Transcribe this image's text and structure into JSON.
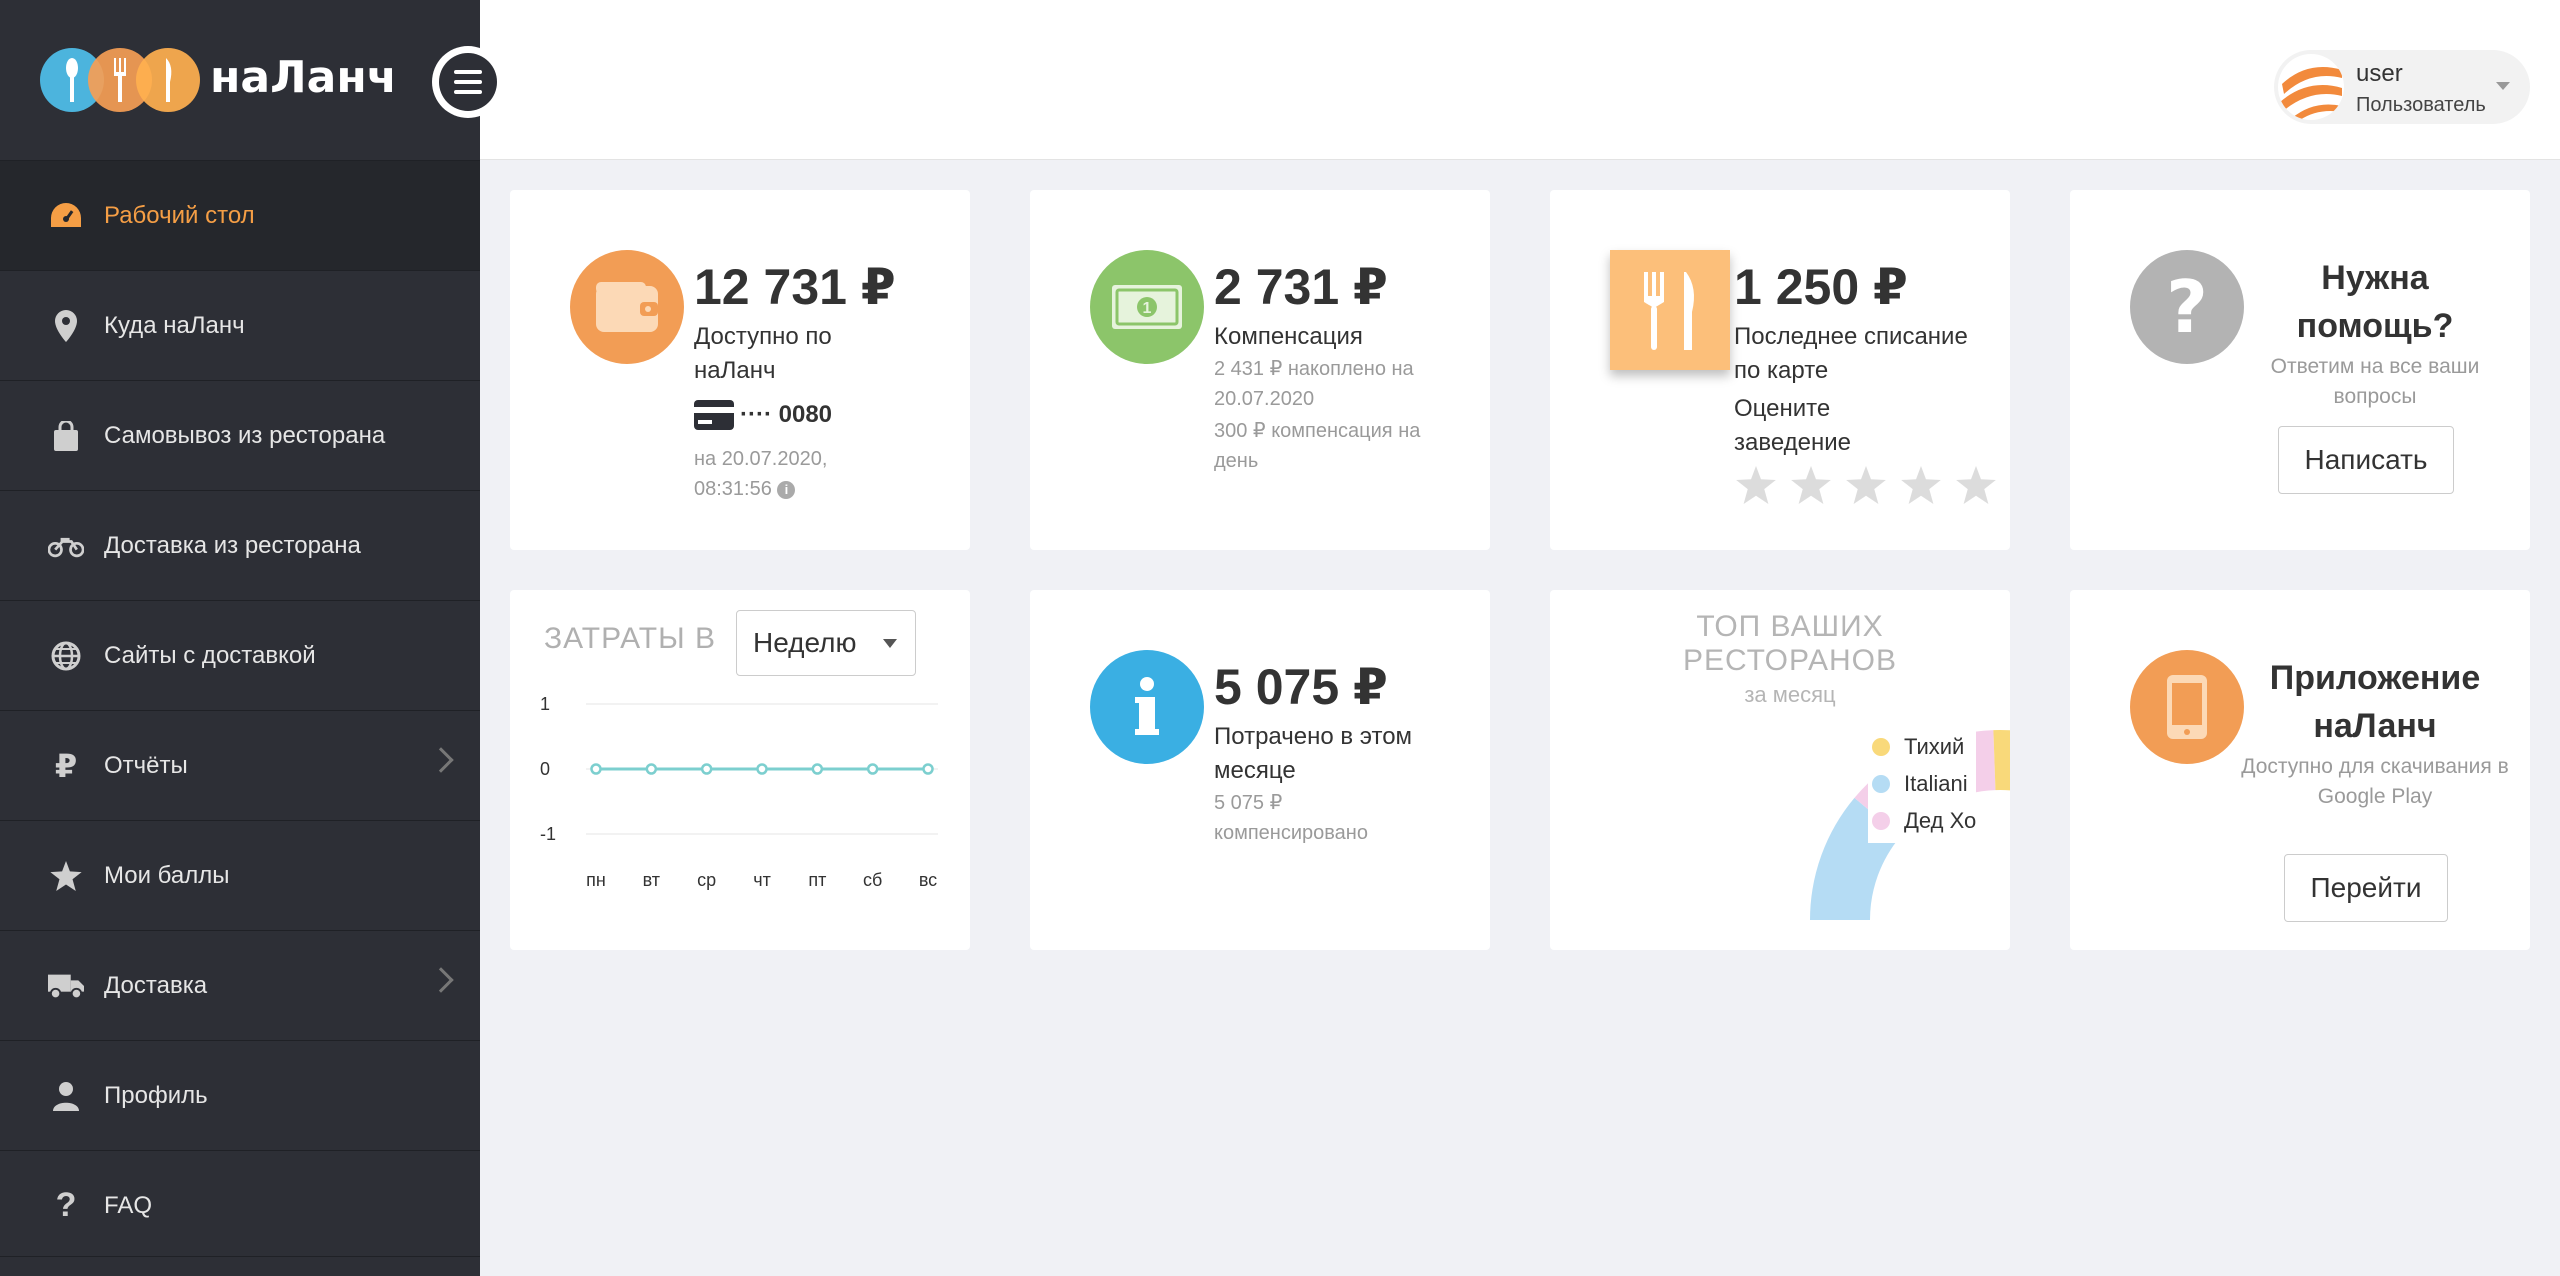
{
  "app": {
    "logo_text": "наЛанч"
  },
  "sidebar": {
    "items": [
      {
        "label": "Рабочий стол",
        "icon": "dashboard-icon",
        "active": true
      },
      {
        "label": "Куда наЛанч",
        "icon": "map-pin-icon"
      },
      {
        "label": "Самовывоз из ресторана",
        "icon": "shopping-bag-icon"
      },
      {
        "label": "Доставка из ресторана",
        "icon": "motorcycle-icon"
      },
      {
        "label": "Сайты с доставкой",
        "icon": "globe-icon"
      },
      {
        "label": "Отчёты",
        "icon": "ruble-icon",
        "has_children": true
      },
      {
        "label": "Мои баллы",
        "icon": "star-icon"
      },
      {
        "label": "Доставка",
        "icon": "truck-icon",
        "has_children": true
      },
      {
        "label": "Профиль",
        "icon": "user-icon"
      },
      {
        "label": "FAQ",
        "icon": "question-icon"
      }
    ]
  },
  "header": {
    "user_name": "user",
    "user_role": "Пользователь"
  },
  "cards": {
    "balance": {
      "amount": "12 731 ₽",
      "label": "Доступно по наЛанч",
      "card_mask": "···· 0080",
      "updated": "на 20.07.2020, 08:31:56"
    },
    "compensation": {
      "amount": "2 731 ₽",
      "label": "Компенсация",
      "accumulated": "2 431 ₽ накоплено на 20.07.2020",
      "per_day": "300 ₽ компенсация на день"
    },
    "last_charge": {
      "amount": "1 250 ₽",
      "label": "Последнее списание по карте",
      "rate_label": "Оцените заведение",
      "stars": 0,
      "stars_max": 5
    },
    "help": {
      "title": "Нужна помощь?",
      "subtitle": "Ответим на все ваши вопросы",
      "button": "Написать"
    },
    "expenses": {
      "title": "ЗАТРАТЫ В",
      "period": "Неделю"
    },
    "spent": {
      "amount": "5 075 ₽",
      "label": "Потрачено в этом месяце",
      "compensated": "5 075 ₽ компенсировано"
    },
    "top": {
      "title": "ТОП ВАШИХ РЕСТОРАНОВ",
      "subtitle": "за месяц"
    },
    "app_promo": {
      "title": "Приложение наЛанч",
      "subtitle": "Доступно для скачивания в Google Play",
      "button": "Перейти"
    }
  },
  "chart_data": [
    {
      "type": "line",
      "categories": [
        "пн",
        "вт",
        "ср",
        "чт",
        "пт",
        "сб",
        "вс"
      ],
      "values": [
        0,
        0,
        0,
        0,
        0,
        0,
        0
      ],
      "ylim": [
        -1,
        1
      ],
      "yticks": [
        "1",
        "0",
        "-1"
      ],
      "color": "#7ccfcf",
      "grid": true
    },
    {
      "type": "pie",
      "labels": [
        "Тихий",
        "Italiani",
        "Дед Хо"
      ],
      "colors": [
        "#f9d97a",
        "#b5dcf4",
        "#f4cfe9"
      ],
      "legend": "right"
    }
  ]
}
